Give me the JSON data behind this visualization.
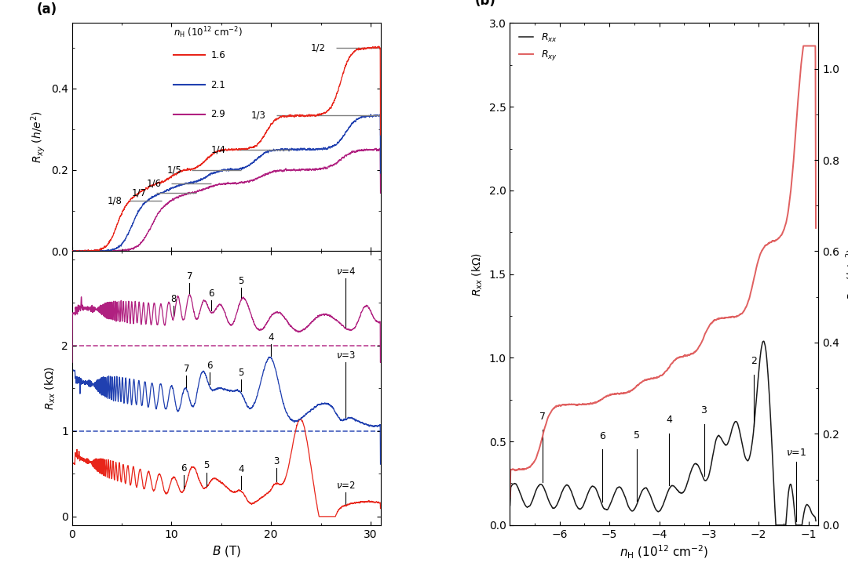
{
  "colors": {
    "red": "#e8251a",
    "blue": "#2040b0",
    "purple": "#b02080",
    "black": "#1a1a1a",
    "salmon": "#e06060"
  },
  "panel_a_top": {
    "xlim": [
      0,
      31
    ],
    "ylim": [
      0.0,
      0.56
    ],
    "yticks": [
      0.0,
      0.2,
      0.4
    ],
    "xticks": [
      0,
      10,
      20,
      30
    ]
  },
  "panel_a_bottom": {
    "xlim": [
      0,
      31
    ],
    "ylim": [
      -0.1,
      3.1
    ],
    "yticks": [
      0,
      1,
      2
    ],
    "xticks": [
      0,
      10,
      20,
      30
    ]
  },
  "panel_b": {
    "xlim": [
      -7.0,
      -0.8
    ],
    "ylim_left": [
      0.0,
      3.0
    ],
    "ylim_right": [
      0.0,
      1.1
    ],
    "yticks_left": [
      0.0,
      0.5,
      1.0,
      1.5,
      2.0,
      2.5,
      3.0
    ],
    "yticks_right": [
      0.0,
      0.2,
      0.4,
      0.6,
      0.8,
      1.0
    ],
    "xticks": [
      -6,
      -5,
      -4,
      -3,
      -2,
      -1
    ]
  }
}
